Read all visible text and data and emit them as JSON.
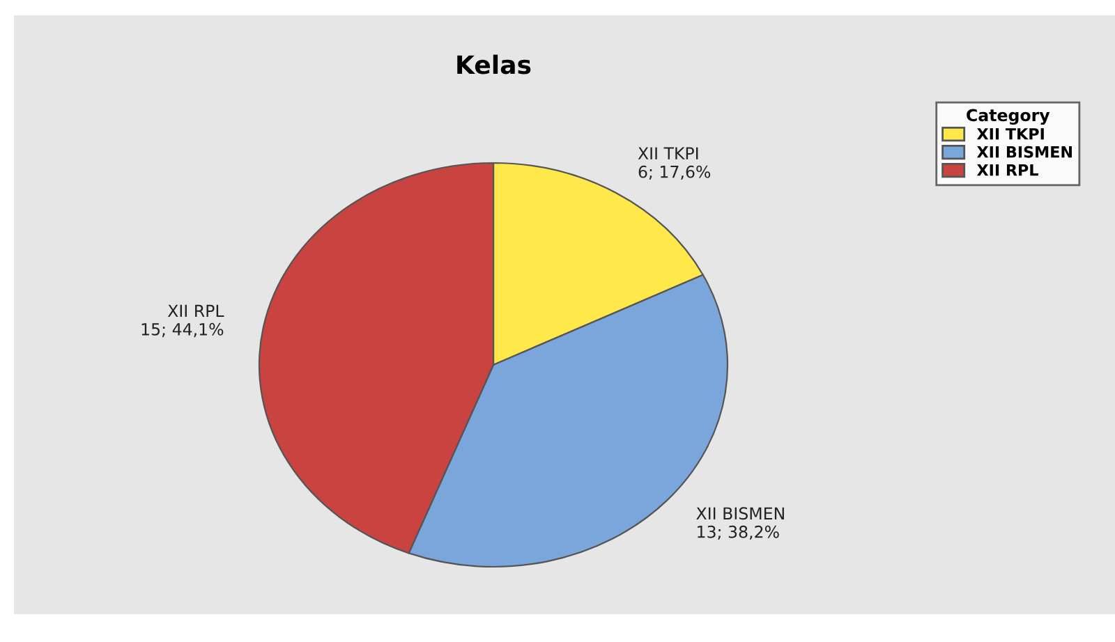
{
  "chart_data": {
    "type": "pie",
    "title": "Kelas",
    "legend_title": "Category",
    "legend": "top right",
    "categories": [
      "XII TKPI",
      "XII BISMEN",
      "XII RPL"
    ],
    "values": [
      6,
      13,
      15
    ],
    "value_labels": [
      "6; 17,6%",
      "13; 38,2%",
      "15; 44,1%"
    ],
    "colors": [
      "#ffe84a",
      "#7ba6db",
      "#c94441"
    ]
  }
}
